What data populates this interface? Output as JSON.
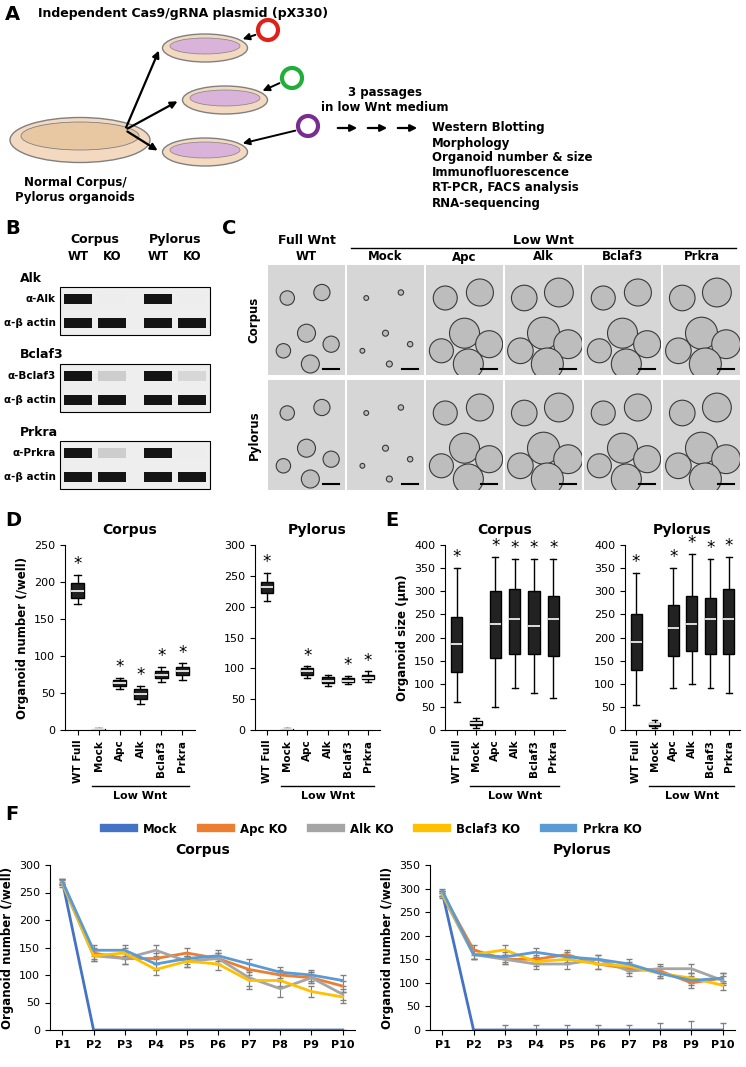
{
  "diagram": {
    "label": "A",
    "plasmid_text": "Independent Cas9/gRNA plasmid (pX330)",
    "source_text": "Normal Corpus/\nPylorus organoids",
    "passage_text": "3 passages\nin low Wnt medium",
    "analyses": [
      "Western Blotting",
      "Morphology",
      "Organoid number & size",
      "Immunofluorescence",
      "RT-PCR, FACS analysis",
      "RNA-sequencing"
    ]
  },
  "blot": {
    "label": "B",
    "columns": [
      {
        "group": "Corpus",
        "lanes": [
          "WT",
          "KO"
        ]
      },
      {
        "group": "Pylorus",
        "lanes": [
          "WT",
          "KO"
        ]
      }
    ],
    "blocks": [
      {
        "title": "Alk",
        "rows": [
          {
            "name": "α-Alk",
            "band_intensity": [
              1,
              0,
              1,
              0
            ]
          },
          {
            "name": "α-β actin",
            "band_intensity": [
              1,
              1,
              1,
              1
            ]
          }
        ]
      },
      {
        "title": "Bclaf3",
        "rows": [
          {
            "name": "α-Bclaf3",
            "band_intensity": [
              1,
              0.15,
              1,
              0.1
            ]
          },
          {
            "name": "α-β actin",
            "band_intensity": [
              1,
              1,
              1,
              1
            ]
          }
        ]
      },
      {
        "title": "Prkra",
        "rows": [
          {
            "name": "α-Prkra",
            "band_intensity": [
              1,
              0.15,
              1,
              0
            ]
          },
          {
            "name": "α-β actin",
            "band_intensity": [
              1,
              1,
              1,
              1
            ]
          }
        ]
      }
    ]
  },
  "micrographs": {
    "label": "C",
    "header_groups": [
      {
        "text": "Full Wnt",
        "columns": [
          "WT"
        ]
      },
      {
        "text": "Low Wnt",
        "columns": [
          "Mock",
          "Apc",
          "Alk",
          "Bclaf3",
          "Prkra"
        ]
      }
    ],
    "columns": [
      "WT",
      "Mock",
      "Apc",
      "Alk",
      "Bclaf3",
      "Prkra"
    ],
    "rows": [
      "Corpus",
      "Pylorus"
    ]
  },
  "chart_data": [
    {
      "panel": "D",
      "type": "box",
      "title": "Corpus",
      "y_label": "Organoid number (/well)",
      "categories": [
        "WT Full",
        "Mock",
        "Apc",
        "Alk",
        "Bclaf3",
        "Prkra"
      ],
      "group_label": "Low Wnt",
      "group_categories": [
        "Mock",
        "Apc",
        "Alk",
        "Bclaf3",
        "Prkra"
      ],
      "stats": [
        [
          170,
          178,
          188,
          198,
          210
        ],
        [
          0,
          0,
          1,
          2,
          3
        ],
        [
          55,
          59,
          63,
          67,
          70
        ],
        [
          35,
          42,
          48,
          55,
          60
        ],
        [
          65,
          70,
          75,
          80,
          85
        ],
        [
          68,
          74,
          80,
          85,
          90
        ]
      ],
      "significance": [
        "*",
        null,
        "*",
        "*",
        "*",
        "*"
      ],
      "color": "#222222",
      "ylim": [
        0,
        250
      ],
      "yticks": [
        0,
        50,
        100,
        150,
        200,
        250
      ]
    },
    {
      "type": "box",
      "title": "Pylorus",
      "categories": [
        "WT Full",
        "Mock",
        "Apc",
        "Alk",
        "Bclaf3",
        "Prkra"
      ],
      "group_label": "Low Wnt",
      "group_categories": [
        "Mock",
        "Apc",
        "Alk",
        "Bclaf3",
        "Prkra"
      ],
      "stats": [
        [
          210,
          222,
          232,
          240,
          255
        ],
        [
          0,
          0,
          1,
          2,
          3
        ],
        [
          85,
          90,
          95,
          100,
          103
        ],
        [
          72,
          77,
          80,
          86,
          90
        ],
        [
          75,
          78,
          80,
          84,
          88
        ],
        [
          78,
          82,
          85,
          90,
          95
        ]
      ],
      "significance": [
        "*",
        null,
        "*",
        null,
        "*",
        "*"
      ],
      "color": "#222222",
      "ylim": [
        0,
        300
      ],
      "yticks": [
        0,
        50,
        100,
        150,
        200,
        250,
        300
      ]
    },
    {
      "panel": "E",
      "type": "box",
      "title": "Corpus",
      "y_label": "Organoid size (µm)",
      "categories": [
        "WT Full",
        "Mock",
        "Apc",
        "Alk",
        "Bclaf3",
        "Prkra"
      ],
      "group_label": "Low Wnt",
      "group_categories": [
        "Mock",
        "Apc",
        "Alk",
        "Bclaf3",
        "Prkra"
      ],
      "stats": [
        [
          60,
          125,
          185,
          245,
          350
        ],
        [
          5,
          10,
          15,
          20,
          25
        ],
        [
          50,
          155,
          230,
          300,
          375
        ],
        [
          90,
          165,
          240,
          305,
          370
        ],
        [
          80,
          165,
          225,
          300,
          370
        ],
        [
          70,
          160,
          240,
          290,
          370
        ]
      ],
      "significance": [
        "*",
        null,
        "*",
        "*",
        "*",
        "*"
      ],
      "color": "#222222",
      "ylim": [
        0,
        400
      ],
      "yticks": [
        0,
        50,
        100,
        150,
        200,
        250,
        300,
        350,
        400
      ]
    },
    {
      "type": "box",
      "title": "Pylorus",
      "categories": [
        "WT Full",
        "Mock",
        "Apc",
        "Alk",
        "Bclaf3",
        "Prkra"
      ],
      "group_label": "Low Wnt",
      "group_categories": [
        "Mock",
        "Apc",
        "Alk",
        "Bclaf3",
        "Prkra"
      ],
      "stats": [
        [
          55,
          130,
          190,
          250,
          340
        ],
        [
          5,
          8,
          12,
          16,
          22
        ],
        [
          90,
          160,
          220,
          270,
          350
        ],
        [
          100,
          170,
          230,
          290,
          380
        ],
        [
          90,
          165,
          240,
          285,
          370
        ],
        [
          80,
          165,
          240,
          305,
          375
        ]
      ],
      "significance": [
        "*",
        null,
        "*",
        "*",
        "*",
        "*"
      ],
      "color": "#222222",
      "ylim": [
        0,
        400
      ],
      "yticks": [
        0,
        50,
        100,
        150,
        200,
        250,
        300,
        350,
        400
      ]
    },
    {
      "panel": "F",
      "type": "line",
      "title": "Corpus",
      "y_label": "Organoid number (/well)",
      "legend": "upper center",
      "categories": [
        "P1",
        "P2",
        "P3",
        "P4",
        "P5",
        "P6",
        "P7",
        "P8",
        "P9",
        "P10"
      ],
      "series": [
        {
          "name": "Mock",
          "color": "#4472c4",
          "values": [
            270,
            0,
            0,
            0,
            0,
            0,
            0,
            0,
            0,
            0
          ],
          "errors": [
            5,
            0,
            0,
            0,
            0,
            0,
            0,
            0,
            0,
            0
          ]
        },
        {
          "name": "Apc KO",
          "color": "#ed7d31",
          "values": [
            270,
            140,
            130,
            130,
            140,
            130,
            110,
            100,
            95,
            80
          ],
          "errors": [
            5,
            10,
            10,
            10,
            10,
            10,
            10,
            10,
            10,
            10
          ]
        },
        {
          "name": "Alk KO",
          "color": "#a5a5a5",
          "values": [
            265,
            135,
            130,
            145,
            125,
            130,
            95,
            75,
            95,
            65
          ],
          "errors": [
            5,
            10,
            10,
            10,
            10,
            10,
            15,
            15,
            10,
            10
          ]
        },
        {
          "name": "Bclaf3 KO",
          "color": "#ffc000",
          "values": [
            268,
            135,
            140,
            110,
            125,
            120,
            90,
            90,
            70,
            60
          ],
          "errors": [
            5,
            10,
            10,
            10,
            10,
            10,
            15,
            10,
            10,
            10
          ]
        },
        {
          "name": "Prkra KO",
          "color": "#5b9bd5",
          "values": [
            270,
            145,
            145,
            120,
            130,
            135,
            120,
            105,
            100,
            90
          ],
          "errors": [
            5,
            10,
            10,
            10,
            10,
            10,
            10,
            10,
            10,
            10
          ]
        }
      ],
      "ylim": [
        0,
        300
      ],
      "yticks": [
        0,
        50,
        100,
        150,
        200,
        250,
        300
      ]
    },
    {
      "type": "line",
      "title": "Pylorus",
      "y_label": "Organoid number (/well)",
      "categories": [
        "P1",
        "P2",
        "P3",
        "P4",
        "P5",
        "P6",
        "P7",
        "P8",
        "P9",
        "P10"
      ],
      "series": [
        {
          "name": "Mock",
          "color": "#4472c4",
          "values": [
            290,
            0,
            0,
            0,
            0,
            0,
            0,
            0,
            0,
            0
          ],
          "errors": [
            5,
            0,
            10,
            10,
            10,
            10,
            10,
            15,
            20,
            15
          ]
        },
        {
          "name": "Apc KO",
          "color": "#ed7d31",
          "values": [
            290,
            170,
            150,
            150,
            160,
            140,
            130,
            125,
            100,
            110
          ],
          "errors": [
            5,
            10,
            10,
            10,
            10,
            10,
            10,
            10,
            10,
            10
          ]
        },
        {
          "name": "Alk KO",
          "color": "#a5a5a5",
          "values": [
            285,
            160,
            150,
            140,
            140,
            150,
            125,
            130,
            130,
            105
          ],
          "errors": [
            5,
            10,
            10,
            10,
            10,
            10,
            10,
            10,
            10,
            10
          ]
        },
        {
          "name": "Bclaf3 KO",
          "color": "#ffc000",
          "values": [
            290,
            160,
            170,
            145,
            150,
            140,
            135,
            120,
            110,
            95
          ],
          "errors": [
            5,
            10,
            10,
            10,
            10,
            10,
            10,
            10,
            10,
            10
          ]
        },
        {
          "name": "Prkra KO",
          "color": "#5b9bd5",
          "values": [
            295,
            160,
            155,
            165,
            155,
            150,
            140,
            120,
            105,
            110
          ],
          "errors": [
            5,
            10,
            10,
            10,
            10,
            10,
            10,
            10,
            10,
            10
          ]
        }
      ],
      "ylim": [
        0,
        350
      ],
      "yticks": [
        0,
        50,
        100,
        150,
        200,
        250,
        300,
        350
      ]
    }
  ]
}
